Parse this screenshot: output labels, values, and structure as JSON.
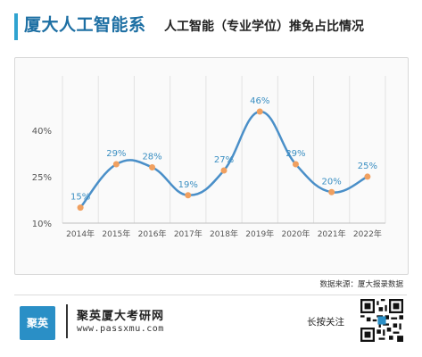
{
  "header": {
    "title": "厦大人工智能系",
    "subtitle": "人工智能（专业学位）推免占比情况"
  },
  "colors": {
    "accent": "#2fa3d0",
    "title": "#1d6fa3",
    "line": "#4a8fc8",
    "point": "#f0a060",
    "label": "#3b8fc2"
  },
  "chart_data": {
    "type": "line",
    "categories": [
      "2014年",
      "2015年",
      "2016年",
      "2017年",
      "2018年",
      "2019年",
      "2020年",
      "2021年",
      "2022年"
    ],
    "values": [
      15,
      29,
      28,
      19,
      27,
      46,
      29,
      20,
      25
    ],
    "data_labels": [
      "15%",
      "29%",
      "28%",
      "19%",
      "27%",
      "46%",
      "29%",
      "20%",
      "25%"
    ],
    "ylim": [
      10,
      46
    ],
    "yticks": [
      10,
      25,
      40
    ],
    "ytick_labels": [
      "10%",
      "25%",
      "40%"
    ],
    "grid": "vertical",
    "title": "",
    "xlabel": "",
    "ylabel": ""
  },
  "source": {
    "label": "数据来源：厦大报录数据"
  },
  "footer": {
    "logo_text": "聚英",
    "brand": "聚英厦大考研网",
    "site": "www.passxmu.com",
    "follow": "长按关注",
    "qr_icon": "qr-code-icon"
  }
}
